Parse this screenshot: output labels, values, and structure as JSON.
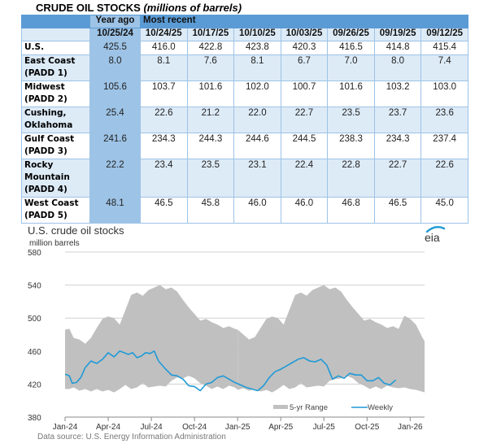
{
  "table": {
    "title_main": "CRUDE OIL STOCKS ",
    "title_italic": "(millions of barrels)",
    "group_headers": {
      "year_ago": "Year ago",
      "most_recent": "Most recent"
    },
    "columns": [
      "10/25/24",
      "10/24/25",
      "10/17/25",
      "10/10/25",
      "10/03/25",
      "09/26/25",
      "09/19/25",
      "09/12/25"
    ],
    "rows": [
      {
        "label_lines": [
          "U.S."
        ],
        "values": [
          "425.5",
          "416.0",
          "422.8",
          "423.8",
          "420.3",
          "416.5",
          "414.8",
          "415.4"
        ]
      },
      {
        "label_lines": [
          "East Coast",
          "(PADD 1)"
        ],
        "values": [
          "8.0",
          "8.1",
          "7.6",
          "8.1",
          "6.7",
          "7.0",
          "8.0",
          "7.4"
        ]
      },
      {
        "label_lines": [
          "Midwest",
          "(PADD 2)"
        ],
        "values": [
          "105.6",
          "103.7",
          "101.6",
          "102.0",
          "100.7",
          "101.6",
          "103.2",
          "103.0"
        ]
      },
      {
        "label_lines": [
          "Cushing,",
          "Oklahoma"
        ],
        "values": [
          "25.4",
          "22.6",
          "21.2",
          "22.0",
          "22.7",
          "23.5",
          "23.7",
          "23.6"
        ]
      },
      {
        "label_lines": [
          "Gulf Coast",
          "(PADD 3)"
        ],
        "values": [
          "241.6",
          "234.3",
          "244.3",
          "244.6",
          "244.5",
          "238.3",
          "234.3",
          "237.4"
        ]
      },
      {
        "label_lines": [
          "Rocky",
          "Mountain",
          "(PADD 4)"
        ],
        "values": [
          "22.2",
          "23.4",
          "23.5",
          "23.1",
          "22.4",
          "22.8",
          "22.7",
          "22.6"
        ]
      },
      {
        "label_lines": [
          "West Coast",
          "(PADD 5)"
        ],
        "values": [
          "48.1",
          "46.5",
          "45.8",
          "46.0",
          "46.0",
          "46.8",
          "46.5",
          "45.0"
        ]
      }
    ],
    "colors": {
      "header": "#5b9bd5",
      "year_ago": "#9dc3e6",
      "alt_row": "#ddebf7"
    }
  },
  "chart_data": {
    "type": "area",
    "title": "U.S. crude oil stocks",
    "ylabel": "million barrels",
    "ylim": [
      380,
      580
    ],
    "yticks": [
      380,
      420,
      460,
      500,
      540,
      580
    ],
    "xticks": [
      "Jan-24",
      "Apr-24",
      "Jul-24",
      "Oct-24",
      "Jan-25",
      "Apr-25",
      "Jul-25",
      "Oct-25",
      "Jan-26"
    ],
    "x_unit": "months since Jan-24",
    "xlim": [
      0,
      25
    ],
    "grid": true,
    "legend": {
      "position": "bottom-right",
      "entries": [
        "5-yr Range",
        "Weekly"
      ]
    },
    "source": "Data source: U.S. Energy Information Administration",
    "series": [
      {
        "name": "5-yr Range",
        "color": "#c0c0c0",
        "x": [
          0,
          0.3,
          0.6,
          1.0,
          1.4,
          1.8,
          2.2,
          2.6,
          3.0,
          3.4,
          3.8,
          4.2,
          4.6,
          5.0,
          5.4,
          5.8,
          6.2,
          6.6,
          7.0,
          7.4,
          7.8,
          8.2,
          8.6,
          9.0,
          9.4,
          9.8,
          10.2,
          10.6,
          11.0,
          11.4,
          11.8,
          12.0
        ],
        "upper": [
          486,
          487,
          476,
          474,
          469,
          476,
          488,
          499,
          502,
          500,
          492,
          510,
          528,
          531,
          527,
          534,
          537,
          540,
          535,
          537,
          532,
          522,
          513,
          505,
          497,
          499,
          495,
          492,
          488,
          490,
          487,
          486
        ],
        "lower": [
          414,
          414,
          416,
          412,
          414,
          411,
          414,
          411,
          413,
          410,
          414,
          419,
          414,
          416,
          421,
          416,
          417,
          418,
          417,
          424,
          428,
          427,
          430,
          427,
          421,
          418,
          414,
          417,
          414,
          418,
          416,
          413
        ]
      },
      {
        "name": "5-yr Range (2025)",
        "color": "#c0c0c0",
        "x": [
          12.0,
          12.4,
          12.8,
          13.2,
          13.6,
          14.0,
          14.4,
          14.8,
          15.2,
          15.6,
          16.0,
          16.4,
          16.8,
          17.2,
          17.6,
          18.0,
          18.4,
          18.8,
          19.2,
          19.6,
          20.0,
          20.4,
          20.8,
          21.2,
          21.6,
          22.0,
          22.4,
          22.8,
          23.2,
          23.6,
          24.0,
          24.4,
          24.8,
          25.0
        ],
        "upper": [
          486,
          480,
          474,
          477,
          488,
          499,
          502,
          500,
          492,
          510,
          528,
          531,
          527,
          534,
          537,
          540,
          535,
          537,
          532,
          522,
          513,
          505,
          497,
          499,
          495,
          492,
          488,
          490,
          487,
          503,
          499,
          492,
          478,
          472
        ],
        "lower": [
          413,
          415,
          412,
          414,
          411,
          413,
          410,
          414,
          419,
          414,
          416,
          421,
          416,
          417,
          418,
          417,
          424,
          426,
          427,
          430,
          427,
          421,
          418,
          414,
          417,
          414,
          418,
          416,
          415,
          416,
          414,
          413,
          411,
          410
        ]
      },
      {
        "name": "Weekly",
        "color": "#1f9ad6",
        "x": [
          0,
          0.3,
          0.5,
          0.8,
          1.1,
          1.4,
          1.8,
          2.2,
          2.6,
          3.0,
          3.4,
          3.8,
          4.1,
          4.4,
          4.7,
          5.0,
          5.3,
          5.6,
          5.9,
          6.2,
          6.5,
          6.8,
          7.0,
          7.4,
          7.8,
          8.2,
          8.6,
          9.0,
          9.4,
          9.8,
          10.2,
          10.6,
          11.0,
          11.4,
          11.8,
          12.2,
          12.6,
          13.0,
          13.4,
          13.8,
          14.2,
          14.6,
          15.0,
          15.4,
          15.8,
          16.2,
          16.6,
          17.0,
          17.4,
          17.8,
          18.2,
          18.6,
          19.0,
          19.4,
          19.8,
          20.2,
          20.6,
          21.0,
          21.4,
          21.8,
          22.2,
          22.6,
          23.0
        ],
        "values": [
          432,
          430,
          421,
          422,
          428,
          440,
          448,
          445,
          450,
          458,
          453,
          460,
          458,
          456,
          458,
          452,
          454,
          458,
          457,
          460,
          448,
          442,
          438,
          431,
          430,
          426,
          418,
          417,
          412,
          420,
          422,
          428,
          430,
          426,
          422,
          419,
          416,
          414,
          412,
          418,
          428,
          435,
          438,
          442,
          446,
          450,
          452,
          448,
          447,
          450,
          443,
          426,
          430,
          427,
          433,
          431,
          431,
          424,
          424,
          428,
          421,
          419,
          425
        ]
      }
    ]
  }
}
